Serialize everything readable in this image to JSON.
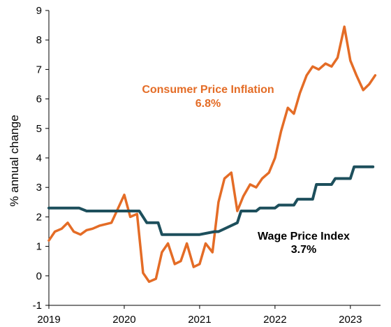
{
  "chart_data": {
    "type": "line",
    "ylabel": "% annual change",
    "xlabel": "",
    "ylim": [
      -1,
      9
    ],
    "yticks": [
      -1,
      0,
      1,
      2,
      3,
      4,
      5,
      6,
      7,
      8,
      9
    ],
    "xlim": [
      2019.0,
      2023.4
    ],
    "xticks": [
      {
        "label": "2019",
        "x": 2019
      },
      {
        "label": "2020",
        "x": 2020
      },
      {
        "label": "2021",
        "x": 2021
      },
      {
        "label": "2022",
        "x": 2022
      },
      {
        "label": "2023",
        "x": 2023
      }
    ],
    "grid": false,
    "annotations": [
      {
        "series": "cpi",
        "lines": [
          "Consumer Price Inflation",
          "6.8%"
        ]
      },
      {
        "series": "wpi",
        "lines": [
          "Wage Price Index",
          "3.7%"
        ]
      }
    ],
    "series": [
      {
        "id": "cpi",
        "color": "#E46C26",
        "x": [
          2019.0,
          2019.08,
          2019.17,
          2019.25,
          2019.33,
          2019.42,
          2019.5,
          2019.58,
          2019.67,
          2019.75,
          2019.83,
          2019.92,
          2020.0,
          2020.08,
          2020.17,
          2020.25,
          2020.33,
          2020.42,
          2020.5,
          2020.58,
          2020.67,
          2020.75,
          2020.83,
          2020.92,
          2021.0,
          2021.08,
          2021.17,
          2021.25,
          2021.33,
          2021.42,
          2021.5,
          2021.58,
          2021.67,
          2021.75,
          2021.83,
          2021.92,
          2022.0,
          2022.08,
          2022.17,
          2022.25,
          2022.33,
          2022.42,
          2022.5,
          2022.58,
          2022.67,
          2022.75,
          2022.83,
          2022.92,
          2023.0,
          2023.08,
          2023.17,
          2023.25,
          2023.33
        ],
        "y": [
          1.2,
          1.5,
          1.6,
          1.8,
          1.5,
          1.4,
          1.55,
          1.6,
          1.7,
          1.75,
          1.8,
          2.3,
          2.75,
          2.0,
          2.1,
          0.1,
          -0.2,
          -0.1,
          0.8,
          1.1,
          0.4,
          0.5,
          1.1,
          0.3,
          0.4,
          1.1,
          0.8,
          2.5,
          3.3,
          3.5,
          2.2,
          2.7,
          3.1,
          3.0,
          3.3,
          3.5,
          4.0,
          4.9,
          5.7,
          5.5,
          6.2,
          6.8,
          7.1,
          7.0,
          7.2,
          7.1,
          7.4,
          8.45,
          7.3,
          6.8,
          6.3,
          6.5,
          6.8
        ]
      },
      {
        "id": "wpi",
        "color": "#1D4F5C",
        "x": [
          2019.0,
          2019.4,
          2019.5,
          2020.0,
          2020.2,
          2020.3,
          2020.45,
          2020.5,
          2021.0,
          2021.2,
          2021.25,
          2021.5,
          2021.55,
          2021.75,
          2021.8,
          2022.0,
          2022.05,
          2022.25,
          2022.3,
          2022.5,
          2022.55,
          2022.75,
          2022.8,
          2023.0,
          2023.05,
          2023.3
        ],
        "y": [
          2.3,
          2.3,
          2.2,
          2.2,
          2.2,
          1.8,
          1.8,
          1.4,
          1.4,
          1.5,
          1.5,
          1.8,
          2.2,
          2.2,
          2.3,
          2.3,
          2.4,
          2.4,
          2.6,
          2.6,
          3.1,
          3.1,
          3.3,
          3.3,
          3.7,
          3.7
        ]
      }
    ]
  }
}
